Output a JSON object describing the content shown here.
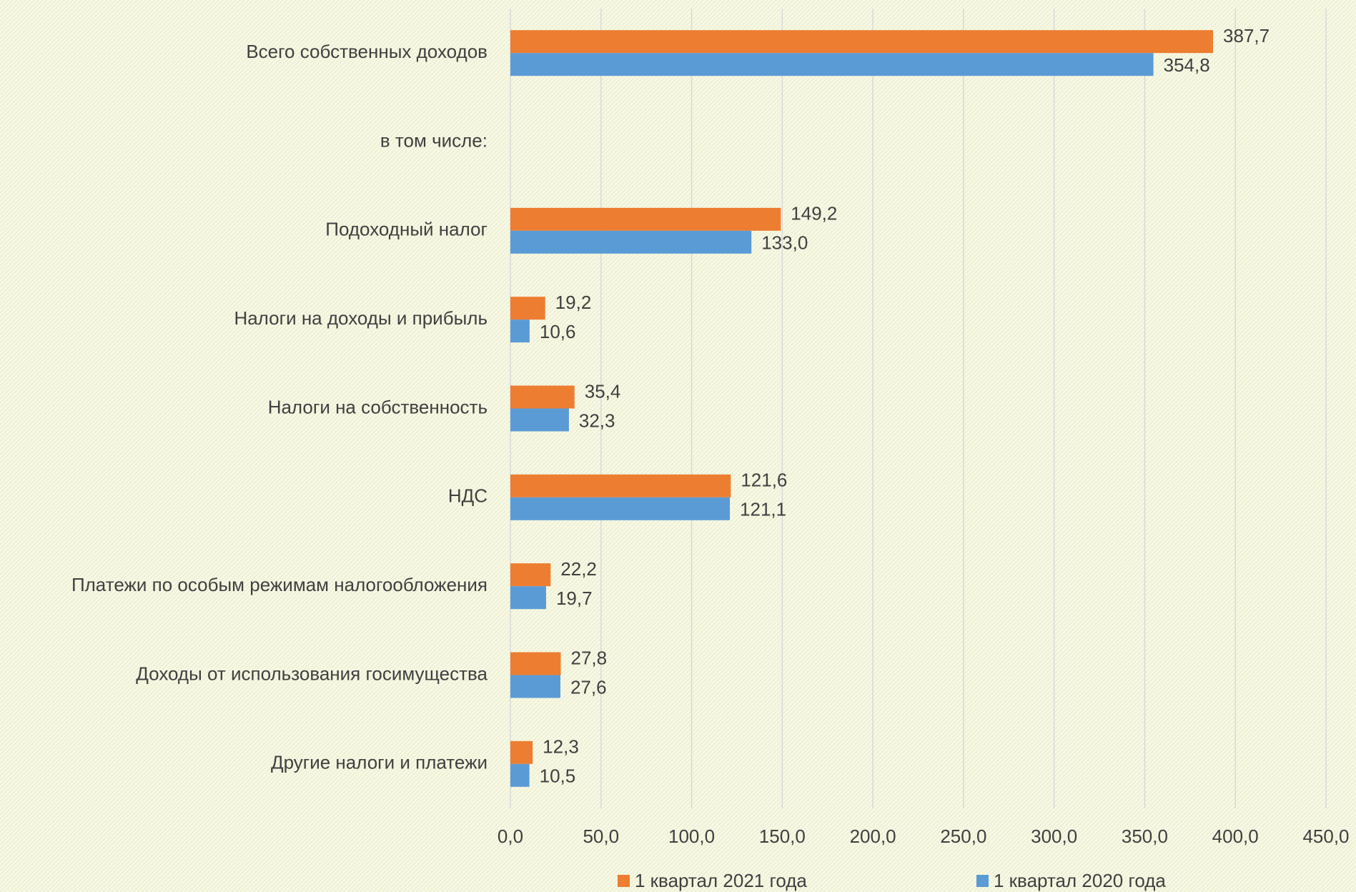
{
  "chart_data": {
    "type": "hbar",
    "categories": [
      "Всего собственных доходов",
      "в том числе:",
      "Подоходный налог",
      "Налоги на доходы и прибыль",
      "Налоги на собственность",
      "НДС",
      "Платежи по особым режимам налогообложения",
      "Доходы от использования госимущества",
      "Другие налоги и платежи"
    ],
    "series": [
      {
        "name": "1 квартал 2021 года",
        "color": "#ed7d31",
        "values": [
          387.7,
          null,
          149.2,
          19.2,
          35.4,
          121.6,
          22.2,
          27.8,
          12.3
        ],
        "value_labels": [
          "387,7",
          null,
          "149,2",
          "19,2",
          "35,4",
          "121,6",
          "22,2",
          "27,8",
          "12,3"
        ]
      },
      {
        "name": "1 квартал 2020 года",
        "color": "#5b9bd5",
        "values": [
          354.8,
          null,
          133.0,
          10.6,
          32.3,
          121.1,
          19.7,
          27.6,
          10.5
        ],
        "value_labels": [
          "354,8",
          null,
          "133,0",
          "10,6",
          "32,3",
          "121,1",
          "19,7",
          "27,6",
          "10,5"
        ]
      }
    ],
    "xlim": [
      0,
      450
    ],
    "xticks": [
      {
        "value": 0,
        "label": "0,0"
      },
      {
        "value": 50,
        "label": "50,0"
      },
      {
        "value": 100,
        "label": "100,0"
      },
      {
        "value": 150,
        "label": "150,0"
      },
      {
        "value": 200,
        "label": "200,0"
      },
      {
        "value": 250,
        "label": "250,0"
      },
      {
        "value": 300,
        "label": "300,0"
      },
      {
        "value": 350,
        "label": "350,0"
      },
      {
        "value": 400,
        "label": "400,0"
      },
      {
        "value": 450,
        "label": "450,0"
      }
    ],
    "grid": true,
    "legend": "bottom"
  }
}
